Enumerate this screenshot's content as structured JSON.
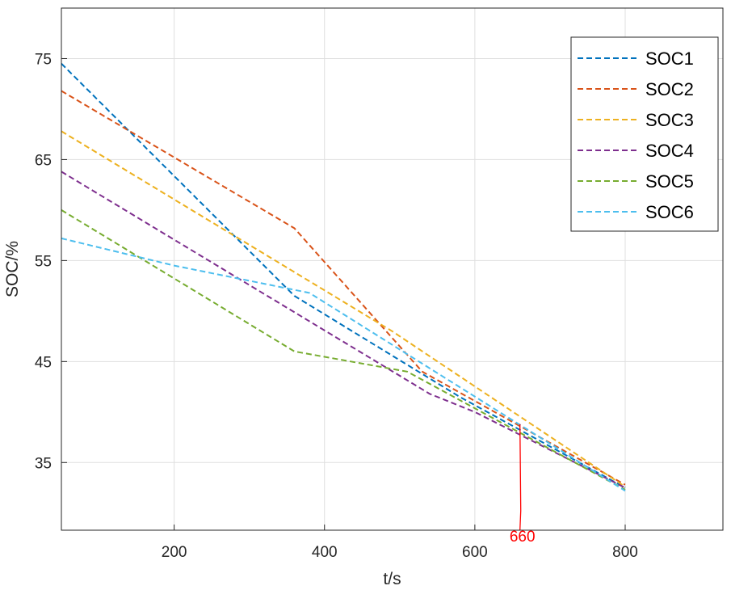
{
  "chart_data": {
    "type": "line",
    "title": "",
    "xlabel": "t/s",
    "ylabel": "SOC/%",
    "xlim": [
      50,
      930
    ],
    "ylim": [
      28.3,
      80
    ],
    "xticks": [
      200,
      400,
      600,
      800
    ],
    "yticks": [
      35,
      45,
      55,
      65,
      75
    ],
    "grid": true,
    "legend_position": "top-right",
    "line_style": "dashed",
    "series": [
      {
        "name": "SOC1",
        "color": "#0072BD",
        "x": [
          50,
          360,
          580,
          800
        ],
        "y": [
          74.5,
          51.5,
          41.5,
          32.5
        ]
      },
      {
        "name": "SOC2",
        "color": "#D95319",
        "x": [
          50,
          360,
          530,
          800
        ],
        "y": [
          71.8,
          58.2,
          44.0,
          32.8
        ]
      },
      {
        "name": "SOC3",
        "color": "#EDB120",
        "x": [
          50,
          490,
          800
        ],
        "y": [
          67.8,
          48.0,
          32.6
        ]
      },
      {
        "name": "SOC4",
        "color": "#7E2F8E",
        "x": [
          50,
          540,
          600,
          800
        ],
        "y": [
          63.8,
          41.8,
          40.0,
          32.5
        ]
      },
      {
        "name": "SOC5",
        "color": "#77AC30",
        "x": [
          50,
          360,
          510,
          800
        ],
        "y": [
          60.0,
          46.0,
          44.0,
          32.3
        ]
      },
      {
        "name": "SOC6",
        "color": "#4DBEEE",
        "x": [
          50,
          200,
          380,
          800
        ],
        "y": [
          57.2,
          54.5,
          51.8,
          32.2
        ]
      }
    ],
    "annotation": {
      "label": "660",
      "x": 660,
      "y": 38.8,
      "color": "#FF0000"
    }
  }
}
